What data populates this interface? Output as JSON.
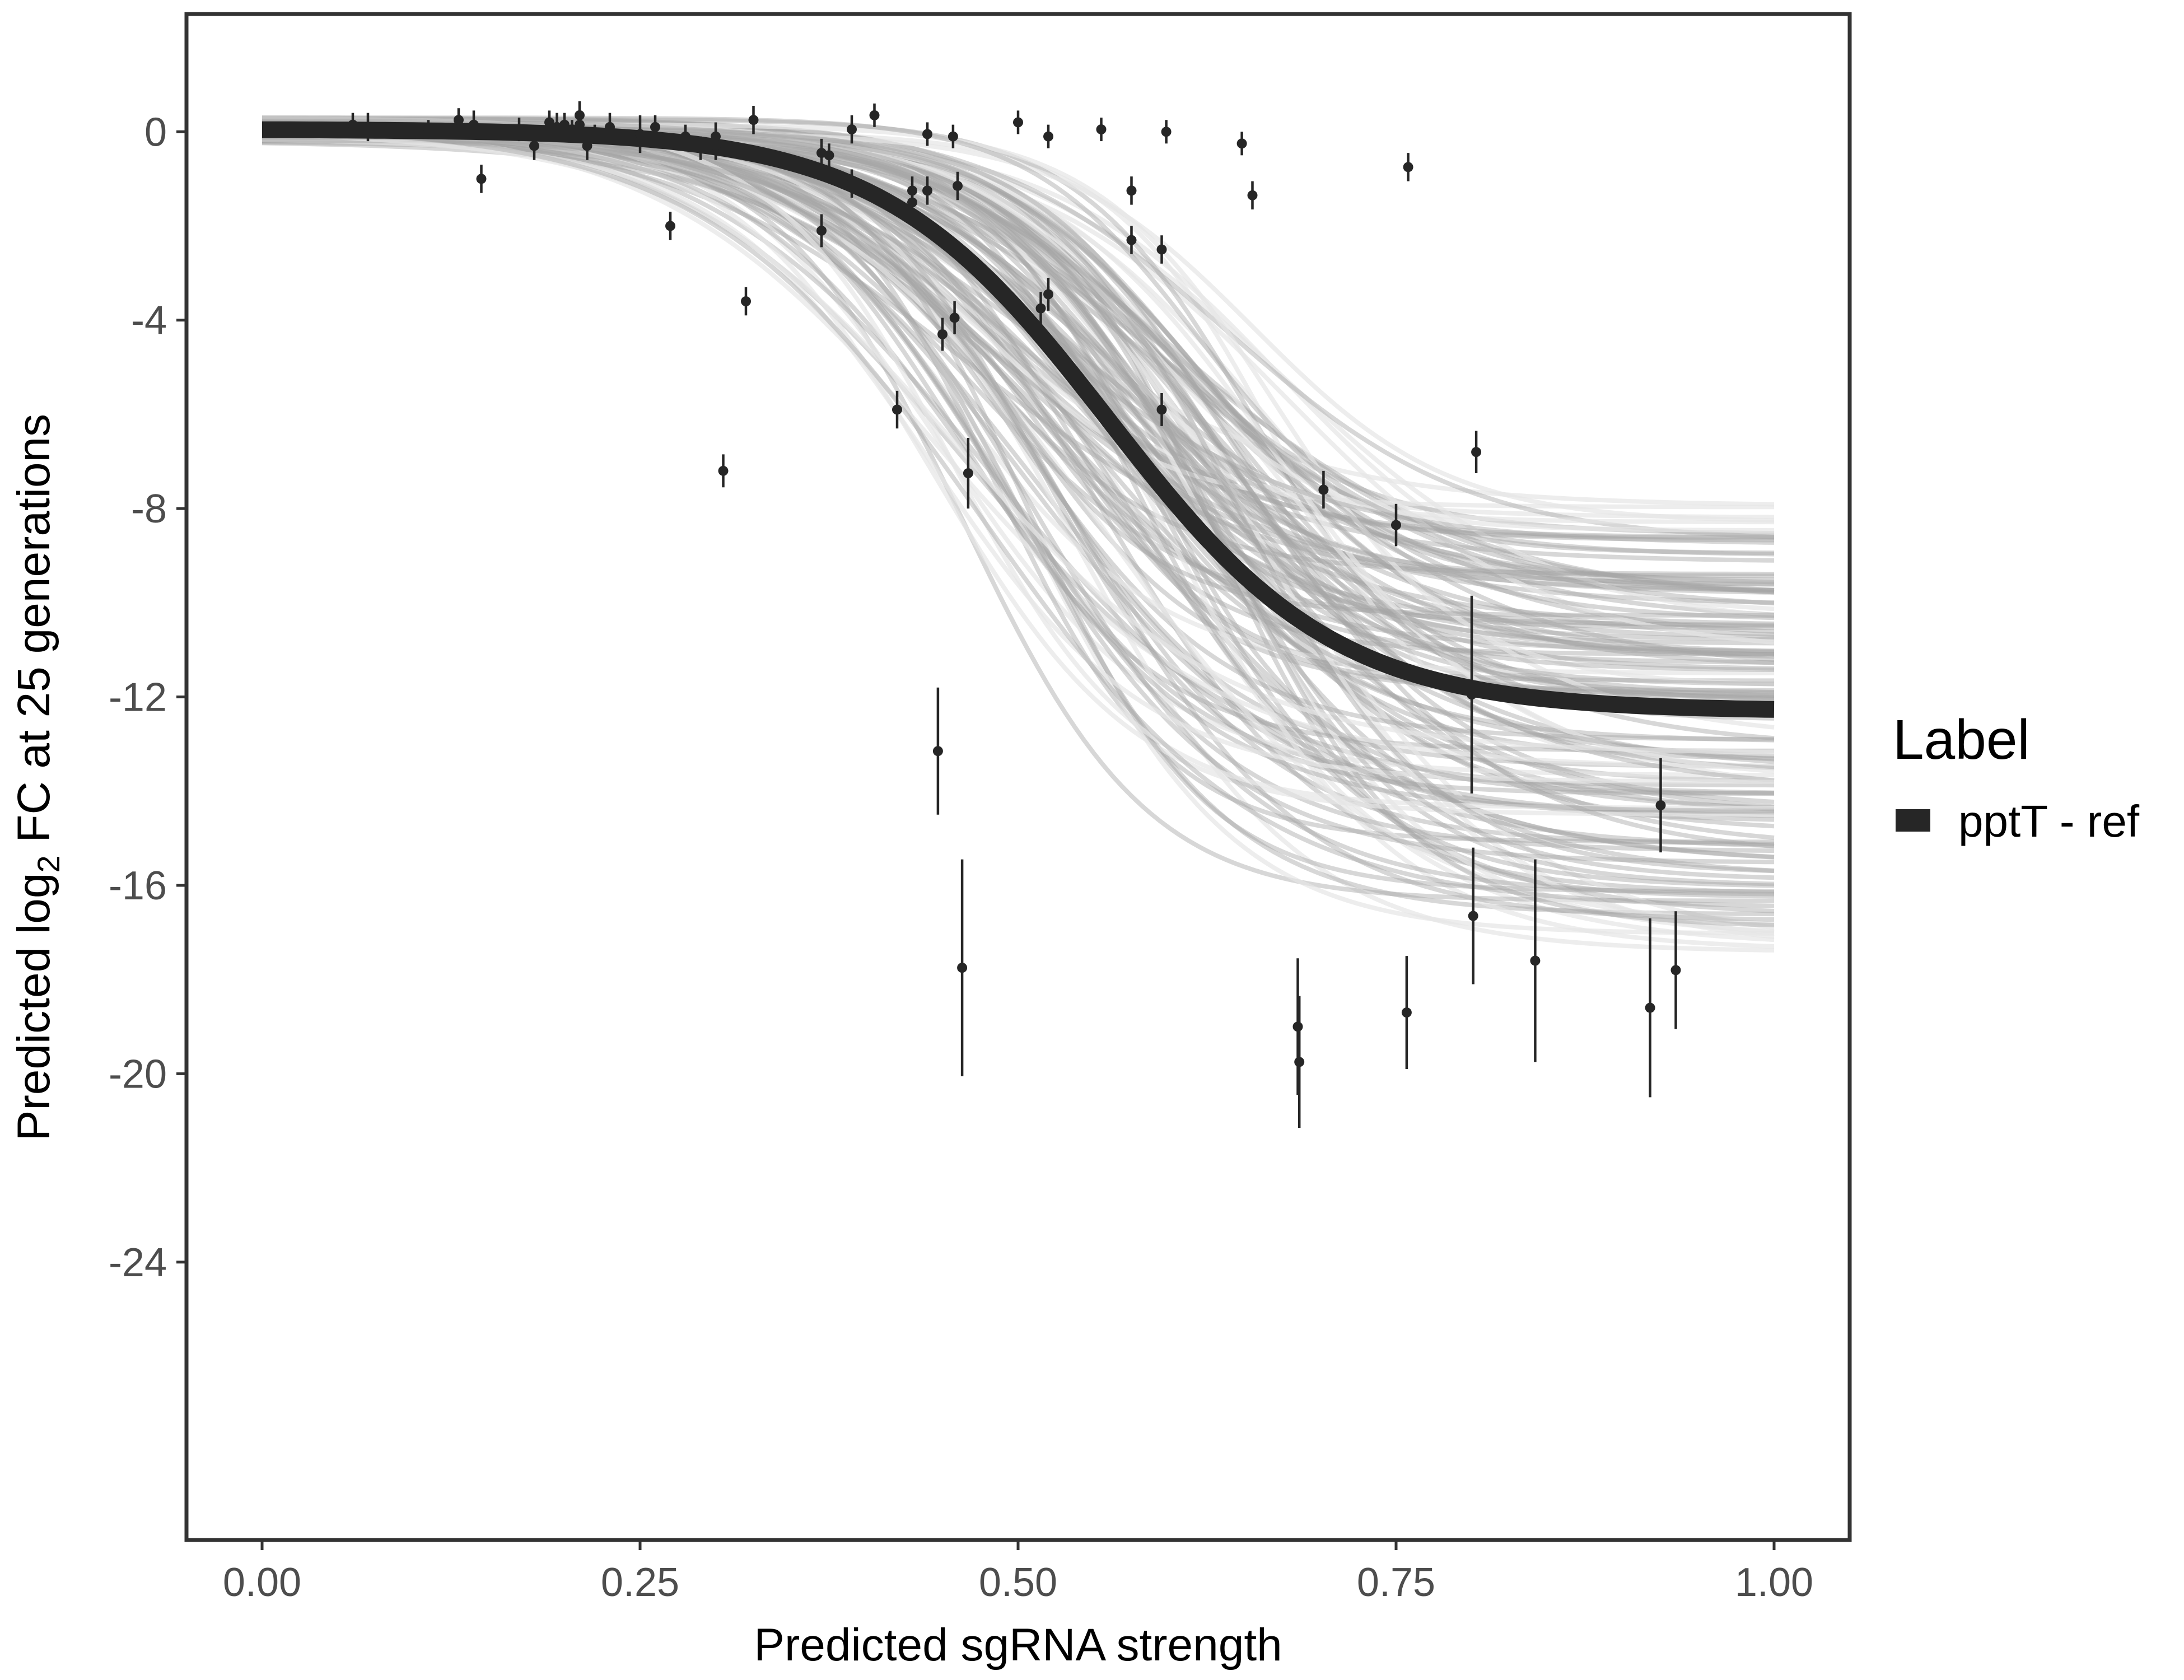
{
  "chart_data": {
    "type": "scatter",
    "title": "",
    "xlabel": "Predicted sgRNA strength",
    "ylabel_parts": {
      "prefix": "Predicted  log",
      "subscript": "2",
      "suffix": " FC at 25 generations"
    },
    "xlim": [
      -0.05,
      1.05
    ],
    "ylim": [
      -29.9,
      2.5
    ],
    "x_ticks": [
      0.0,
      0.25,
      0.5,
      0.75,
      1.0
    ],
    "x_tick_labels": [
      "0.00",
      "0.25",
      "0.50",
      "0.75",
      "1.00"
    ],
    "y_ticks": [
      0,
      -4,
      -8,
      -12,
      -16,
      -20,
      -24
    ],
    "y_tick_labels": [
      "0",
      "-4",
      "-8",
      "-12",
      "-16",
      "-20",
      "-24"
    ],
    "grid": false,
    "legend": {
      "title": "Label",
      "position": "right",
      "entries": [
        {
          "label": "pptT - ref",
          "color": "#262626"
        }
      ]
    },
    "fit_curve": {
      "name": "pptT - ref",
      "model": "sigmoid",
      "upper": 0.05,
      "lower": -12.3,
      "midpoint": 0.56,
      "scale": 0.075
    },
    "posterior_band": {
      "count": 140,
      "color": "#a6a6a6",
      "midpoint_range": [
        0.44,
        0.68
      ],
      "scale_range": [
        0.055,
        0.1
      ],
      "lower_range": [
        -17.5,
        -7.9
      ]
    },
    "points": [
      {
        "x": 0.06,
        "y": 0.15,
        "err": 0.25
      },
      {
        "x": 0.07,
        "y": 0.1,
        "err": 0.3
      },
      {
        "x": 0.11,
        "y": 0.05,
        "err": 0.2
      },
      {
        "x": 0.13,
        "y": 0.25,
        "err": 0.25
      },
      {
        "x": 0.14,
        "y": 0.15,
        "err": 0.3
      },
      {
        "x": 0.14,
        "y": 0.05,
        "err": 0.2
      },
      {
        "x": 0.145,
        "y": -1.0,
        "err": 0.3
      },
      {
        "x": 0.17,
        "y": 0.05,
        "err": 0.25
      },
      {
        "x": 0.18,
        "y": -0.3,
        "err": 0.3
      },
      {
        "x": 0.19,
        "y": 0.2,
        "err": 0.25
      },
      {
        "x": 0.195,
        "y": 0.1,
        "err": 0.3
      },
      {
        "x": 0.2,
        "y": 0.15,
        "err": 0.25
      },
      {
        "x": 0.205,
        "y": 0.05,
        "err": 0.2
      },
      {
        "x": 0.21,
        "y": 0.35,
        "err": 0.3
      },
      {
        "x": 0.21,
        "y": 0.15,
        "err": 0.3
      },
      {
        "x": 0.215,
        "y": -0.3,
        "err": 0.3
      },
      {
        "x": 0.22,
        "y": -0.05,
        "err": 0.2
      },
      {
        "x": 0.23,
        "y": 0.1,
        "err": 0.3
      },
      {
        "x": 0.25,
        "y": -0.05,
        "err": 0.4
      },
      {
        "x": 0.26,
        "y": 0.1,
        "err": 0.25
      },
      {
        "x": 0.27,
        "y": -2.0,
        "err": 0.3
      },
      {
        "x": 0.28,
        "y": -0.1,
        "err": 0.25
      },
      {
        "x": 0.29,
        "y": -0.35,
        "err": 0.25
      },
      {
        "x": 0.3,
        "y": -0.1,
        "err": 0.3
      },
      {
        "x": 0.3,
        "y": -0.3,
        "err": 0.3
      },
      {
        "x": 0.305,
        "y": -7.2,
        "err": 0.35
      },
      {
        "x": 0.32,
        "y": -3.6,
        "err": 0.3
      },
      {
        "x": 0.325,
        "y": 0.25,
        "err": 0.3
      },
      {
        "x": 0.37,
        "y": -0.45,
        "err": 0.3
      },
      {
        "x": 0.37,
        "y": -2.1,
        "err": 0.35
      },
      {
        "x": 0.375,
        "y": -0.5,
        "err": 0.25
      },
      {
        "x": 0.39,
        "y": 0.05,
        "err": 0.3
      },
      {
        "x": 0.39,
        "y": -1.1,
        "err": 0.3
      },
      {
        "x": 0.405,
        "y": 0.35,
        "err": 0.25
      },
      {
        "x": 0.42,
        "y": -5.9,
        "err": 0.4
      },
      {
        "x": 0.43,
        "y": -1.5,
        "err": 0.35
      },
      {
        "x": 0.43,
        "y": -1.25,
        "err": 0.3
      },
      {
        "x": 0.44,
        "y": -0.05,
        "err": 0.25
      },
      {
        "x": 0.44,
        "y": -1.25,
        "err": 0.3
      },
      {
        "x": 0.447,
        "y": -13.15,
        "err": 1.35
      },
      {
        "x": 0.45,
        "y": -4.3,
        "err": 0.35
      },
      {
        "x": 0.457,
        "y": -0.1,
        "err": 0.25
      },
      {
        "x": 0.458,
        "y": -3.95,
        "err": 0.35
      },
      {
        "x": 0.46,
        "y": -1.15,
        "err": 0.3
      },
      {
        "x": 0.463,
        "y": -17.75,
        "err": 2.3
      },
      {
        "x": 0.467,
        "y": -7.25,
        "err": 0.75
      },
      {
        "x": 0.5,
        "y": 0.2,
        "err": 0.25
      },
      {
        "x": 0.515,
        "y": -3.75,
        "err": 0.35
      },
      {
        "x": 0.52,
        "y": -0.1,
        "err": 0.25
      },
      {
        "x": 0.52,
        "y": -3.45,
        "err": 0.35
      },
      {
        "x": 0.555,
        "y": 0.05,
        "err": 0.25
      },
      {
        "x": 0.575,
        "y": -1.25,
        "err": 0.3
      },
      {
        "x": 0.575,
        "y": -2.3,
        "err": 0.3
      },
      {
        "x": 0.595,
        "y": -2.5,
        "err": 0.3
      },
      {
        "x": 0.595,
        "y": -5.9,
        "err": 0.35
      },
      {
        "x": 0.598,
        "y": 0.0,
        "err": 0.25
      },
      {
        "x": 0.648,
        "y": -0.25,
        "err": 0.25
      },
      {
        "x": 0.655,
        "y": -1.35,
        "err": 0.3
      },
      {
        "x": 0.685,
        "y": -19.0,
        "err": 1.45
      },
      {
        "x": 0.686,
        "y": -19.75,
        "err": 1.4
      },
      {
        "x": 0.702,
        "y": -7.6,
        "err": 0.4
      },
      {
        "x": 0.75,
        "y": -8.35,
        "err": 0.45
      },
      {
        "x": 0.757,
        "y": -18.7,
        "err": 1.2
      },
      {
        "x": 0.758,
        "y": -0.75,
        "err": 0.3
      },
      {
        "x": 0.8,
        "y": -11.95,
        "err": 2.1
      },
      {
        "x": 0.801,
        "y": -16.65,
        "err": 1.45
      },
      {
        "x": 0.803,
        "y": -6.8,
        "err": 0.45
      },
      {
        "x": 0.842,
        "y": -17.6,
        "err": 2.15
      },
      {
        "x": 0.918,
        "y": -18.6,
        "err": 1.9
      },
      {
        "x": 0.925,
        "y": -14.3,
        "err": 1.0
      },
      {
        "x": 0.935,
        "y": -17.8,
        "err": 1.25
      }
    ]
  }
}
